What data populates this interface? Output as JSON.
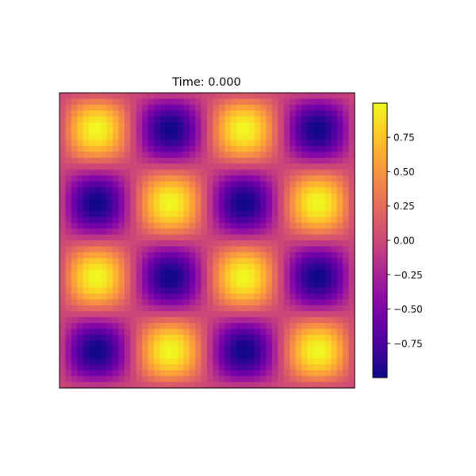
{
  "chart_data": {
    "type": "heatmap",
    "title": "Time: 0.000",
    "xlabel": "",
    "ylabel": "",
    "colormap": "plasma",
    "grid": false,
    "axes_ticks": false,
    "field": {
      "expression": "sin(2*pi*fx*x) * sin(2*pi*fy*y)",
      "fx": 2,
      "fy": 2,
      "x_range": [
        0,
        1
      ],
      "y_range": [
        0,
        1
      ],
      "resolution": 50
    },
    "colorbar": {
      "range": [
        -0.9995,
        0.9995
      ],
      "ticks": [
        0.75,
        0.5,
        0.25,
        0.0,
        -0.25,
        -0.5,
        -0.75
      ],
      "tick_labels": [
        "0.75",
        "0.50",
        "0.25",
        "0.00",
        "−0.25",
        "−0.50",
        "−0.75"
      ],
      "placement": "right"
    }
  }
}
